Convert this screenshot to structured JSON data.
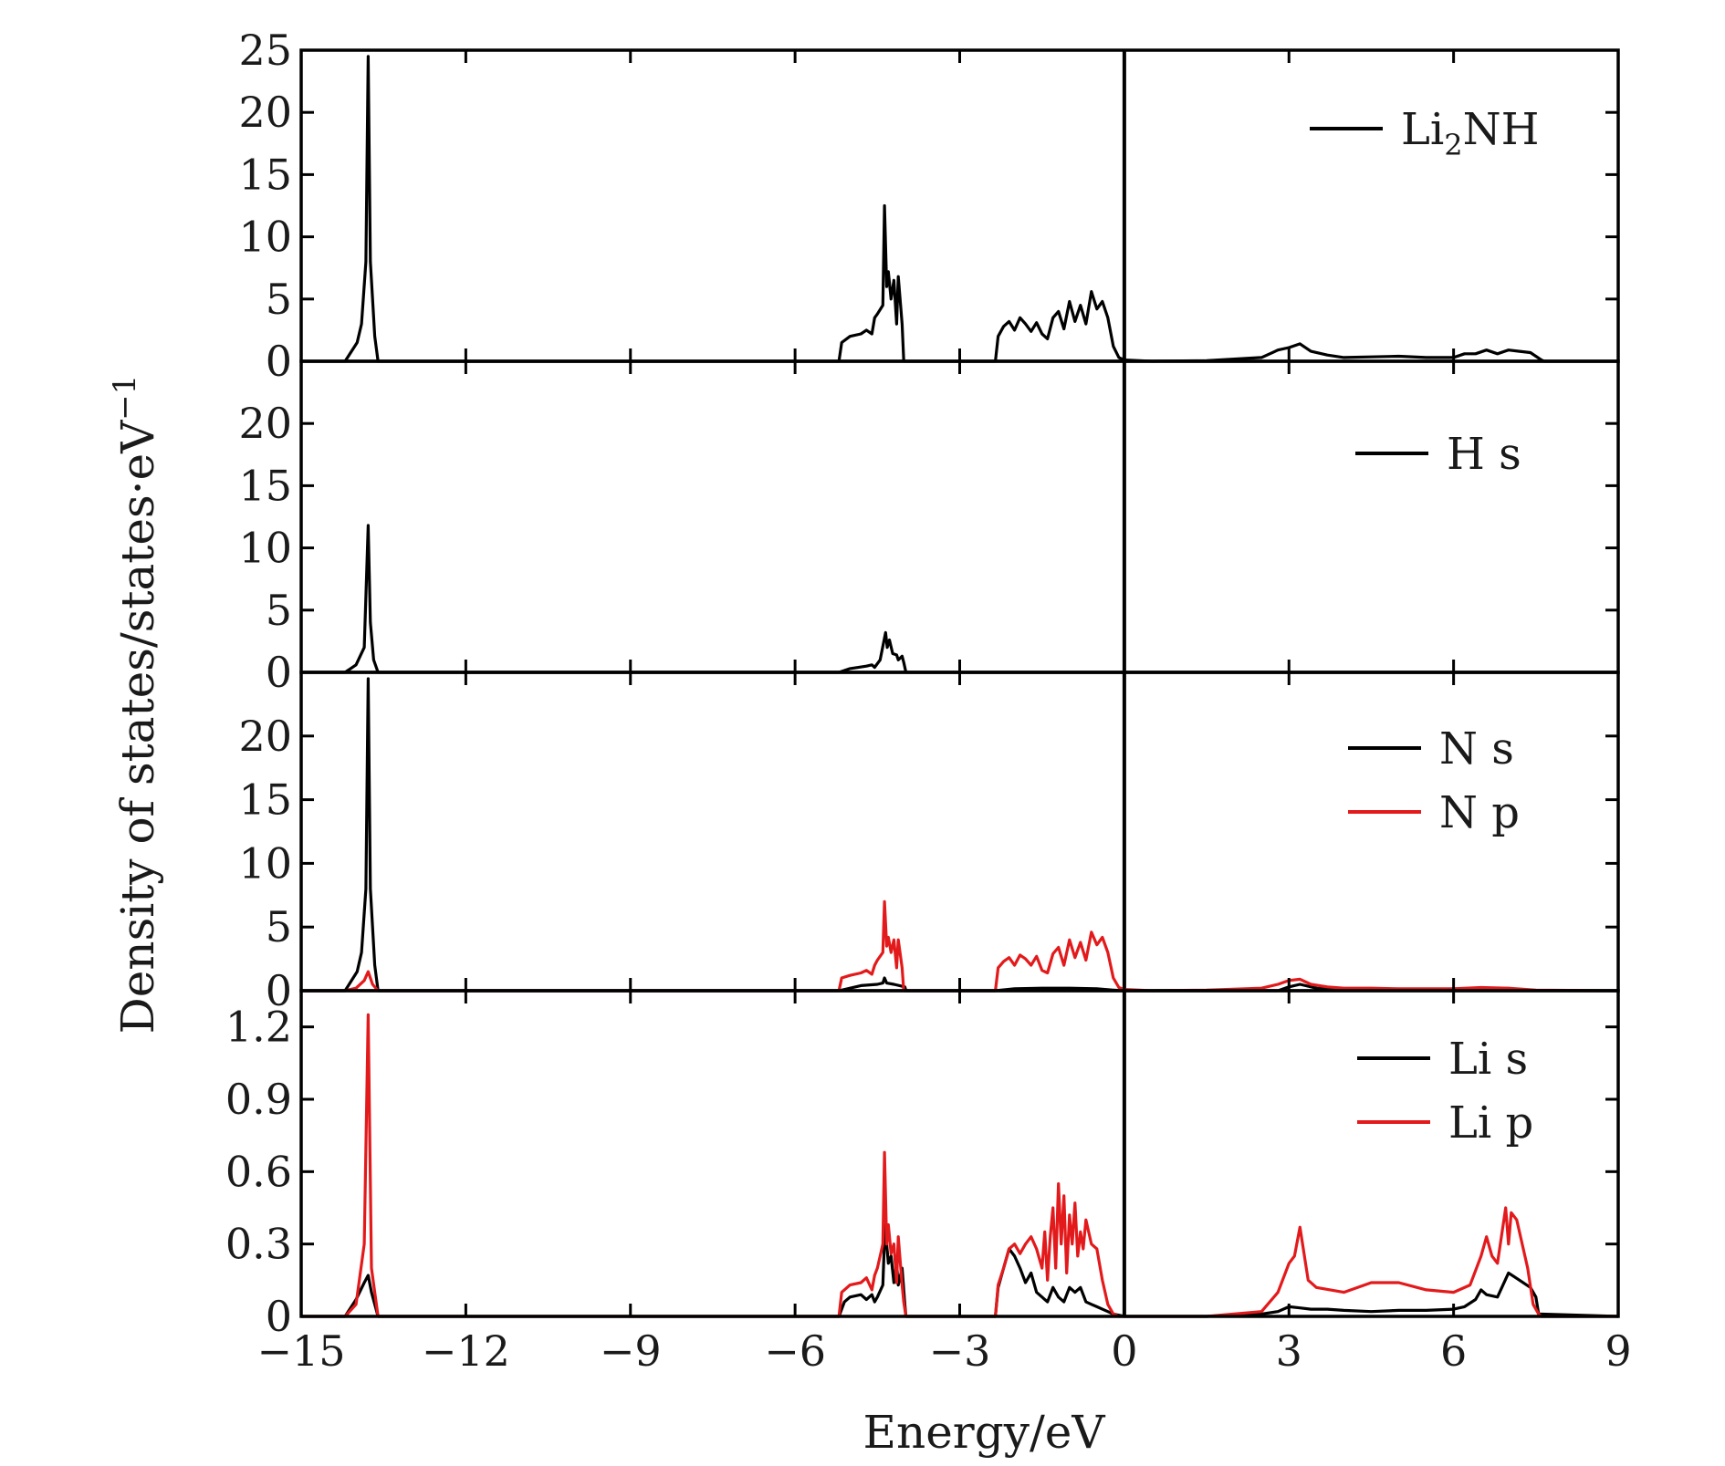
{
  "chart_data": {
    "type": "line",
    "xlabel": "Energy/eV",
    "ylabel": "Density of states/states·eV",
    "ylabel_superscript": "−1",
    "xlim": [
      -15,
      9
    ],
    "x_ticks": [
      -15,
      -12,
      -9,
      -6,
      -3,
      0,
      3,
      6,
      9
    ],
    "x_tick_labels": [
      "−15",
      "−12",
      "−9",
      "−6",
      "−3",
      "0",
      "3",
      "6",
      "9"
    ],
    "fermi_level": 0,
    "colors": {
      "black": "#000000",
      "red": "#e31a1c"
    },
    "panels": [
      {
        "id": "li2nh",
        "ylim": [
          0,
          25
        ],
        "y_ticks": [
          0,
          5,
          10,
          15,
          20,
          25
        ],
        "y_tick_labels": [
          "0",
          "5",
          "10",
          "15",
          "20",
          "25"
        ],
        "series": [
          {
            "name": "Li",
            "name_sub": "2",
            "name_tail": "NH",
            "color": "#000000",
            "x": [
              -15,
              -14.2,
              -13.98,
              -13.9,
              -13.82,
              -13.78,
              -13.74,
              -13.66,
              -13.6,
              -5.2,
              -5.15,
              -5.0,
              -4.8,
              -4.7,
              -4.6,
              -4.55,
              -4.5,
              -4.4,
              -4.37,
              -4.33,
              -4.3,
              -4.25,
              -4.2,
              -4.15,
              -4.12,
              -4.05,
              -4.02,
              -3.98,
              -2.35,
              -2.3,
              -2.2,
              -2.1,
              -2.0,
              -1.9,
              -1.8,
              -1.7,
              -1.6,
              -1.5,
              -1.4,
              -1.3,
              -1.2,
              -1.1,
              -1.0,
              -0.9,
              -0.8,
              -0.7,
              -0.6,
              -0.5,
              -0.4,
              -0.3,
              -0.2,
              -0.1,
              0,
              0.5,
              1.5,
              2.5,
              2.8,
              3.0,
              3.2,
              3.4,
              3.7,
              4.0,
              4.5,
              5.0,
              5.5,
              6.0,
              6.2,
              6.4,
              6.6,
              6.8,
              7.0,
              7.2,
              7.4,
              7.6,
              7.65,
              9
            ],
            "y": [
              0,
              0,
              1.5,
              3,
              8,
              24.5,
              8,
              2,
              0,
              0,
              1.5,
              2,
              2.2,
              2.5,
              2.2,
              3.5,
              3.8,
              4.5,
              12.5,
              6,
              7.2,
              5,
              6.5,
              3,
              6.8,
              3,
              0,
              0,
              0,
              2,
              2.8,
              3.2,
              2.5,
              3.5,
              3.0,
              2.4,
              3.1,
              2.2,
              1.8,
              3.5,
              4.0,
              2.6,
              4.8,
              3.2,
              4.5,
              3.0,
              5.6,
              4.2,
              4.8,
              3.5,
              1.2,
              0.3,
              0.1,
              0,
              0.05,
              0.3,
              0.9,
              1.1,
              1.4,
              0.8,
              0.5,
              0.3,
              0.35,
              0.4,
              0.3,
              0.3,
              0.6,
              0.6,
              0.9,
              0.6,
              0.9,
              0.8,
              0.7,
              0.1,
              0,
              0
            ]
          }
        ]
      },
      {
        "id": "h",
        "ylim": [
          0,
          25
        ],
        "y_ticks": [
          0,
          5,
          10,
          15,
          20
        ],
        "y_tick_labels": [
          "0",
          "5",
          "10",
          "15",
          "20"
        ],
        "series": [
          {
            "name": "H  s",
            "color": "#000000",
            "x": [
              -15,
              -14.2,
              -14.0,
              -13.85,
              -13.78,
              -13.74,
              -13.68,
              -13.6,
              -5.2,
              -5.0,
              -4.7,
              -4.6,
              -4.55,
              -4.45,
              -4.35,
              -4.32,
              -4.28,
              -4.22,
              -4.15,
              -4.12,
              -4.05,
              -4.02,
              -3.98,
              9
            ],
            "y": [
              0,
              0,
              0.6,
              2,
              11.8,
              4,
              1,
              0,
              0,
              0.3,
              0.5,
              0.6,
              0.4,
              1.0,
              3.2,
              2.0,
              2.6,
              1.5,
              1.4,
              1.0,
              1.3,
              0.8,
              0,
              0
            ]
          }
        ]
      },
      {
        "id": "n",
        "ylim": [
          0,
          25
        ],
        "y_ticks": [
          0,
          5,
          10,
          15,
          20
        ],
        "y_tick_labels": [
          "0",
          "5",
          "10",
          "15",
          "20"
        ],
        "series": [
          {
            "name": "N  s",
            "color": "#000000",
            "x": [
              -15,
              -14.2,
              -13.98,
              -13.9,
              -13.82,
              -13.78,
              -13.74,
              -13.66,
              -13.6,
              -5.2,
              -4.8,
              -4.5,
              -4.4,
              -4.37,
              -4.33,
              -4.2,
              -4.0,
              -3.98,
              -2.35,
              -2.0,
              -1.5,
              -1.0,
              -0.5,
              -0.2,
              0,
              2.8,
              3.0,
              3.2,
              3.5,
              4.0,
              9
            ],
            "y": [
              0,
              0,
              1.5,
              3,
              8,
              24.5,
              8,
              2,
              0,
              0,
              0.4,
              0.5,
              0.6,
              1.0,
              0.6,
              0.5,
              0.3,
              0,
              0,
              0.15,
              0.2,
              0.2,
              0.15,
              0.05,
              0,
              0,
              0.3,
              0.5,
              0.2,
              0.05,
              0
            ]
          },
          {
            "name": "N  p",
            "color": "#e31a1c",
            "x": [
              -15,
              -14.2,
              -14.0,
              -13.85,
              -13.78,
              -13.7,
              -13.6,
              -5.2,
              -5.15,
              -5.0,
              -4.8,
              -4.7,
              -4.6,
              -4.55,
              -4.5,
              -4.4,
              -4.37,
              -4.33,
              -4.3,
              -4.25,
              -4.2,
              -4.15,
              -4.12,
              -4.05,
              -4.02,
              -3.98,
              -2.35,
              -2.3,
              -2.2,
              -2.1,
              -2.0,
              -1.9,
              -1.8,
              -1.7,
              -1.6,
              -1.5,
              -1.4,
              -1.3,
              -1.2,
              -1.1,
              -1.0,
              -0.9,
              -0.8,
              -0.7,
              -0.6,
              -0.5,
              -0.4,
              -0.3,
              -0.2,
              -0.1,
              0,
              0.5,
              1.5,
              2.5,
              2.8,
              3.0,
              3.2,
              3.4,
              3.7,
              4.0,
              4.5,
              5.0,
              6.0,
              6.5,
              7.0,
              7.5,
              9
            ],
            "y": [
              0,
              0,
              0.2,
              0.8,
              1.5,
              0.5,
              0,
              0,
              1.0,
              1.2,
              1.4,
              1.6,
              1.3,
              2.0,
              2.4,
              3.0,
              7.0,
              3.5,
              4.2,
              3.0,
              4.0,
              1.8,
              4.0,
              1.8,
              0,
              0,
              0,
              1.8,
              2.3,
              2.6,
              2.0,
              2.8,
              2.5,
              2.0,
              2.7,
              1.6,
              1.4,
              2.9,
              3.4,
              2.0,
              4.0,
              2.6,
              3.8,
              2.4,
              4.6,
              3.6,
              4.2,
              3.0,
              1.0,
              0.25,
              0.1,
              0,
              0.05,
              0.2,
              0.5,
              0.8,
              0.9,
              0.5,
              0.3,
              0.2,
              0.2,
              0.15,
              0.15,
              0.25,
              0.2,
              0.05,
              0
            ]
          }
        ]
      },
      {
        "id": "li",
        "ylim": [
          0,
          1.35
        ],
        "y_ticks": [
          0,
          0.3,
          0.6,
          0.9,
          1.2
        ],
        "y_tick_labels": [
          "0",
          "0.3",
          "0.6",
          "0.9",
          "1.2"
        ],
        "series": [
          {
            "name": "Li  s",
            "color": "#000000",
            "x": [
              -15,
              -14.2,
              -14.0,
              -13.85,
              -13.78,
              -13.72,
              -13.6,
              -5.2,
              -5.1,
              -5.0,
              -4.8,
              -4.7,
              -4.6,
              -4.55,
              -4.5,
              -4.4,
              -4.36,
              -4.3,
              -4.25,
              -4.2,
              -4.15,
              -4.12,
              -4.05,
              -4.0,
              -3.98,
              -2.35,
              -2.3,
              -2.2,
              -2.1,
              -2.0,
              -1.9,
              -1.8,
              -1.7,
              -1.6,
              -1.5,
              -1.4,
              -1.3,
              -1.2,
              -1.1,
              -1.0,
              -0.9,
              -0.8,
              -0.7,
              -0.6,
              -0.5,
              -0.4,
              -0.3,
              -0.2,
              -0.1,
              0,
              1.5,
              2.5,
              2.8,
              3.0,
              3.2,
              3.4,
              3.7,
              4.0,
              4.5,
              5.0,
              5.5,
              6.0,
              6.2,
              6.4,
              6.5,
              6.6,
              6.8,
              7.0,
              7.2,
              7.4,
              7.5,
              7.55,
              9
            ],
            "y": [
              0,
              0,
              0.07,
              0.14,
              0.17,
              0.1,
              0,
              0,
              0.06,
              0.08,
              0.09,
              0.07,
              0.09,
              0.06,
              0.08,
              0.13,
              0.38,
              0.22,
              0.25,
              0.14,
              0.22,
              0.13,
              0.2,
              0.05,
              0,
              0,
              0.12,
              0.2,
              0.28,
              0.25,
              0.2,
              0.14,
              0.18,
              0.1,
              0.08,
              0.06,
              0.12,
              0.08,
              0.06,
              0.12,
              0.1,
              0.12,
              0.06,
              0.05,
              0.04,
              0.03,
              0.02,
              0.01,
              0.005,
              0,
              0,
              0.01,
              0.02,
              0.04,
              0.035,
              0.03,
              0.03,
              0.025,
              0.02,
              0.025,
              0.025,
              0.03,
              0.04,
              0.07,
              0.11,
              0.09,
              0.08,
              0.18,
              0.15,
              0.12,
              0.08,
              0.01,
              0
            ]
          },
          {
            "name": "Li  p",
            "color": "#e31a1c",
            "x": [
              -15,
              -14.2,
              -14.0,
              -13.85,
              -13.78,
              -13.72,
              -13.6,
              -5.2,
              -5.15,
              -5.0,
              -4.8,
              -4.7,
              -4.6,
              -4.55,
              -4.5,
              -4.4,
              -4.37,
              -4.33,
              -4.3,
              -4.25,
              -4.2,
              -4.15,
              -4.12,
              -4.05,
              -4.02,
              -3.98,
              -2.35,
              -2.3,
              -2.2,
              -2.1,
              -2.0,
              -1.9,
              -1.8,
              -1.7,
              -1.6,
              -1.5,
              -1.45,
              -1.4,
              -1.35,
              -1.3,
              -1.25,
              -1.2,
              -1.15,
              -1.1,
              -1.05,
              -1.0,
              -0.95,
              -0.9,
              -0.85,
              -0.8,
              -0.75,
              -0.7,
              -0.6,
              -0.5,
              -0.4,
              -0.3,
              -0.2,
              -0.1,
              0,
              1.5,
              2.5,
              2.8,
              3.0,
              3.1,
              3.2,
              3.35,
              3.5,
              4.0,
              4.5,
              5.0,
              5.5,
              6.0,
              6.3,
              6.5,
              6.6,
              6.7,
              6.8,
              6.95,
              7.0,
              7.05,
              7.15,
              7.25,
              7.35,
              7.45,
              7.55,
              7.6,
              9
            ],
            "y": [
              0,
              0,
              0.05,
              0.3,
              1.25,
              0.2,
              0,
              0,
              0.1,
              0.13,
              0.14,
              0.16,
              0.11,
              0.17,
              0.2,
              0.3,
              0.68,
              0.3,
              0.38,
              0.26,
              0.3,
              0.14,
              0.33,
              0.13,
              0.06,
              0,
              0,
              0.13,
              0.2,
              0.28,
              0.3,
              0.26,
              0.3,
              0.33,
              0.28,
              0.2,
              0.35,
              0.15,
              0.33,
              0.45,
              0.2,
              0.55,
              0.3,
              0.5,
              0.18,
              0.42,
              0.3,
              0.47,
              0.25,
              0.35,
              0.28,
              0.4,
              0.3,
              0.28,
              0.15,
              0.05,
              0.01,
              0,
              0,
              0,
              0.02,
              0.1,
              0.22,
              0.25,
              0.37,
              0.15,
              0.12,
              0.1,
              0.14,
              0.14,
              0.11,
              0.1,
              0.13,
              0.25,
              0.33,
              0.25,
              0.22,
              0.45,
              0.3,
              0.43,
              0.4,
              0.3,
              0.2,
              0.05,
              0.01,
              0,
              0
            ]
          }
        ]
      }
    ]
  }
}
